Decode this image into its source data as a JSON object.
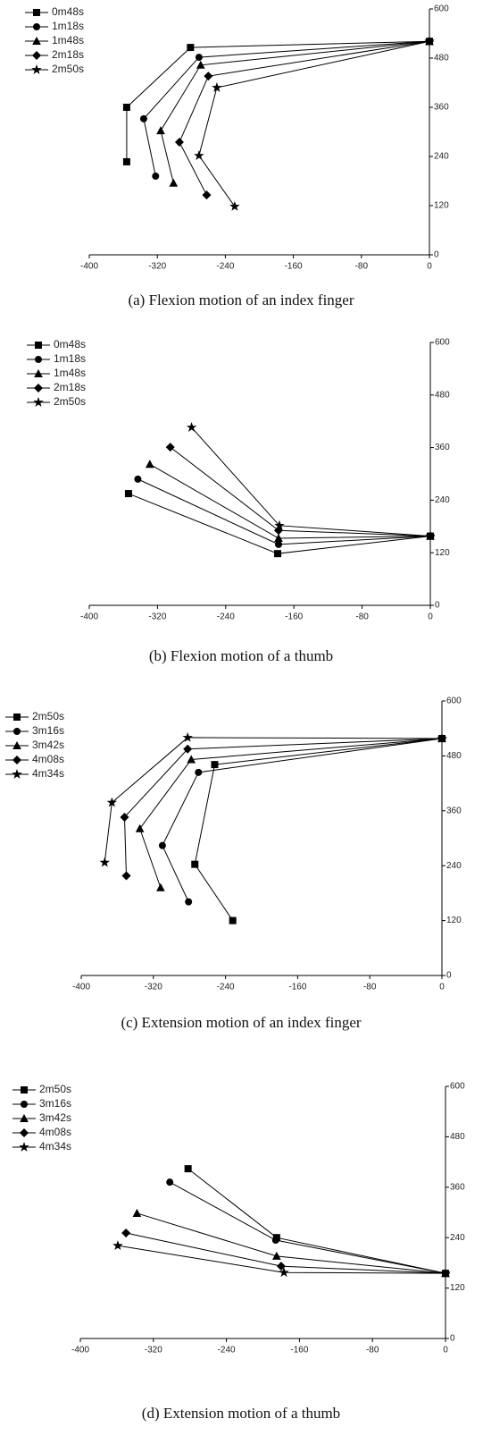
{
  "chart_data": [
    {
      "type": "line",
      "caption": "(a) Flexion motion of an index finger",
      "legend": "upper left",
      "xlim": [
        -400,
        0
      ],
      "xticks": [
        -400,
        -320,
        -240,
        -160,
        -80,
        0
      ],
      "ylim": [
        0,
        600
      ],
      "yticks": [
        0,
        120,
        240,
        360,
        480,
        600
      ],
      "series": [
        {
          "name": "0m48s",
          "marker": "square",
          "color": "#000000",
          "x": [
            0,
            -281,
            -356,
            -356
          ],
          "values": [
            521,
            506,
            360,
            227
          ]
        },
        {
          "name": "1m18s",
          "marker": "circle",
          "color": "#000000",
          "x": [
            0,
            -271,
            -336,
            -322
          ],
          "values": [
            521,
            482,
            332,
            192
          ]
        },
        {
          "name": "1m48s",
          "marker": "triangle",
          "color": "#000000",
          "x": [
            0,
            -269,
            -316,
            -301
          ],
          "values": [
            521,
            463,
            303,
            175
          ]
        },
        {
          "name": "2m18s",
          "marker": "diamond",
          "color": "#000000",
          "x": [
            0,
            -260,
            -294,
            -262
          ],
          "values": [
            521,
            436,
            275,
            146
          ]
        },
        {
          "name": "2m50s",
          "marker": "star",
          "color": "#000000",
          "x": [
            0,
            -250,
            -271,
            -229
          ],
          "values": [
            521,
            408,
            242,
            118
          ]
        }
      ]
    },
    {
      "type": "line",
      "caption": "(b) Flexion motion of a thumb",
      "legend": "upper left",
      "xlim": [
        -400,
        0
      ],
      "xticks": [
        -400,
        -320,
        -240,
        -160,
        -80,
        0
      ],
      "ylim": [
        0,
        600
      ],
      "yticks": [
        0,
        120,
        240,
        360,
        480,
        600
      ],
      "series": [
        {
          "name": "0m48s",
          "marker": "square",
          "color": "#000000",
          "x": [
            0,
            -179,
            -354
          ],
          "values": [
            158,
            118,
            255
          ]
        },
        {
          "name": "1m18s",
          "marker": "circle",
          "color": "#000000",
          "x": [
            0,
            -178,
            -343
          ],
          "values": [
            158,
            139,
            288
          ]
        },
        {
          "name": "1m48s",
          "marker": "triangle",
          "color": "#000000",
          "x": [
            0,
            -178,
            -329
          ],
          "values": [
            158,
            153,
            322
          ]
        },
        {
          "name": "2m18s",
          "marker": "diamond",
          "color": "#000000",
          "x": [
            0,
            -178,
            -305
          ],
          "values": [
            158,
            171,
            361
          ]
        },
        {
          "name": "2m50s",
          "marker": "star",
          "color": "#000000",
          "x": [
            0,
            -177,
            -280
          ],
          "values": [
            158,
            182,
            406
          ]
        }
      ]
    },
    {
      "type": "line",
      "caption": "(c) Extension motion of an index finger",
      "legend": "upper left",
      "xlim": [
        -400,
        0
      ],
      "xticks": [
        -400,
        -320,
        -240,
        -160,
        -80,
        0
      ],
      "ylim": [
        0,
        600
      ],
      "yticks": [
        0,
        120,
        240,
        360,
        480,
        600
      ],
      "series": [
        {
          "name": "2m50s",
          "marker": "square",
          "color": "#000000",
          "x": [
            0,
            -252,
            -274,
            -232
          ],
          "values": [
            518,
            461,
            243,
            120
          ]
        },
        {
          "name": "3m16s",
          "marker": "circle",
          "color": "#000000",
          "x": [
            0,
            -270,
            -310,
            -281
          ],
          "values": [
            518,
            444,
            284,
            161
          ]
        },
        {
          "name": "3m42s",
          "marker": "triangle",
          "color": "#000000",
          "x": [
            0,
            -278,
            -335,
            -312
          ],
          "values": [
            518,
            472,
            321,
            192
          ]
        },
        {
          "name": "4m08s",
          "marker": "diamond",
          "color": "#000000",
          "x": [
            0,
            -282,
            -352,
            -350
          ],
          "values": [
            518,
            495,
            346,
            218
          ]
        },
        {
          "name": "4m34s",
          "marker": "star",
          "color": "#000000",
          "x": [
            0,
            -282,
            -366,
            -374
          ],
          "values": [
            518,
            520,
            378,
            247
          ]
        }
      ]
    },
    {
      "type": "line",
      "caption": "(d) Extension motion of a thumb",
      "legend": "upper left",
      "xlim": [
        -400,
        0
      ],
      "xticks": [
        -400,
        -320,
        -240,
        -160,
        -80,
        0
      ],
      "ylim": [
        0,
        600
      ],
      "yticks": [
        0,
        120,
        240,
        360,
        480,
        600
      ],
      "series": [
        {
          "name": "2m50s",
          "marker": "square",
          "color": "#000000",
          "x": [
            0,
            -185,
            -282
          ],
          "values": [
            155,
            240,
            404
          ]
        },
        {
          "name": "3m16s",
          "marker": "circle",
          "color": "#000000",
          "x": [
            0,
            -186,
            -302
          ],
          "values": [
            155,
            234,
            372
          ]
        },
        {
          "name": "3m42s",
          "marker": "triangle",
          "color": "#000000",
          "x": [
            0,
            -185,
            -338
          ],
          "values": [
            155,
            196,
            298
          ]
        },
        {
          "name": "4m08s",
          "marker": "diamond",
          "color": "#000000",
          "x": [
            0,
            -180,
            -350
          ],
          "values": [
            155,
            172,
            251
          ]
        },
        {
          "name": "4m34s",
          "marker": "star",
          "color": "#000000",
          "x": [
            0,
            -177,
            -359
          ],
          "values": [
            155,
            157,
            221
          ]
        }
      ]
    }
  ]
}
